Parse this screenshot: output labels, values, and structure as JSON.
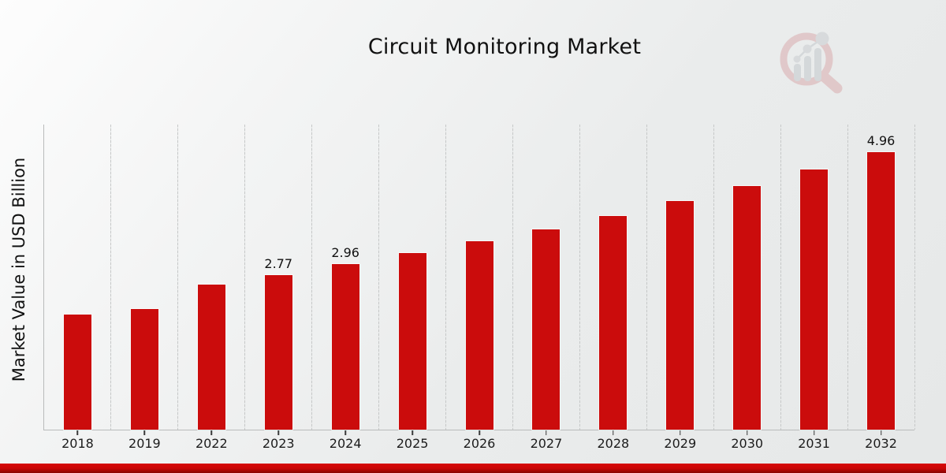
{
  "chart_data": {
    "type": "bar",
    "title": "Circuit Monitoring Market",
    "xlabel": "",
    "ylabel": "Market Value in USD Billion",
    "categories": [
      "2018",
      "2019",
      "2022",
      "2023",
      "2024",
      "2025",
      "2026",
      "2027",
      "2028",
      "2029",
      "2030",
      "2031",
      "2032"
    ],
    "values": [
      2.06,
      2.16,
      2.6,
      2.77,
      2.96,
      3.16,
      3.37,
      3.59,
      3.83,
      4.09,
      4.36,
      4.65,
      4.96
    ],
    "data_labels": {
      "2023": "2.77",
      "2024": "2.96",
      "2032": "4.96"
    },
    "ylim": [
      0,
      5.46
    ],
    "grid": "vertical category separators, dotted",
    "legend": "none",
    "bar_color": "#cb0c0c",
    "axis_color": "#b9bbbb",
    "tick_label_color": "#1c1c1c"
  },
  "footer_band": {
    "color_top": "#d60808",
    "color_bottom": "#870303"
  },
  "watermark": {
    "name": "magnifier-bar-chart-logo",
    "ring_color": "#c25055",
    "bars_color": "#8f96a0"
  }
}
